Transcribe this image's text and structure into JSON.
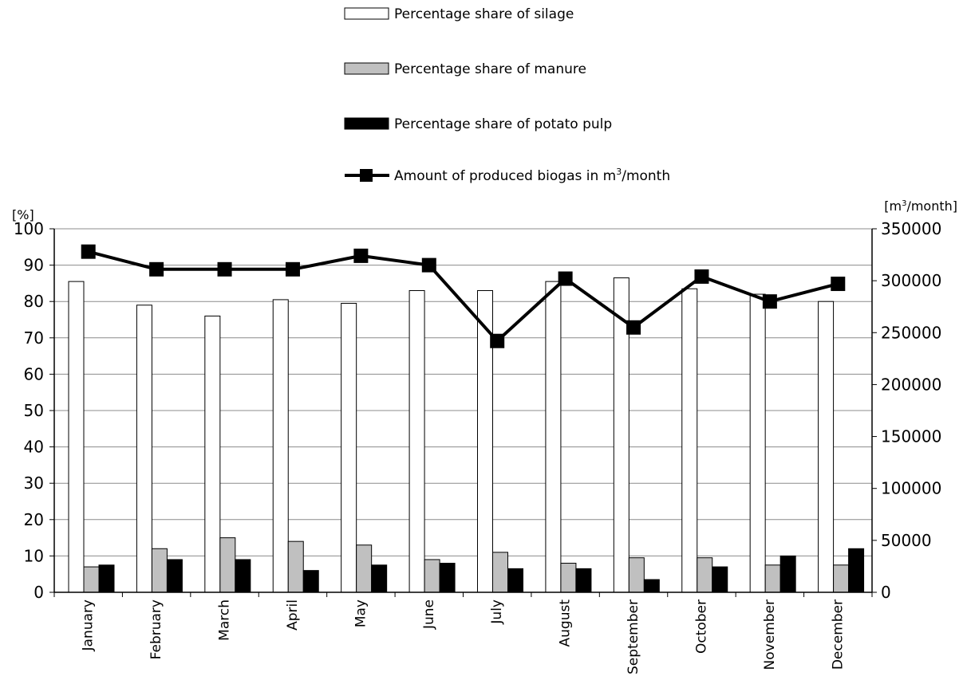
{
  "chart_data": {
    "type": "bar",
    "categories": [
      "January",
      "February",
      "March",
      "April",
      "May",
      "June",
      "July",
      "August",
      "September",
      "October",
      "November",
      "December"
    ],
    "series": [
      {
        "name": "Percentage share of silage",
        "kind": "bar",
        "axis": "left",
        "color": "#ffffff",
        "values": [
          85.5,
          79,
          76,
          80.5,
          79.5,
          83,
          83,
          85.5,
          86.5,
          83.5,
          82,
          80
        ]
      },
      {
        "name": "Percentage share of manure",
        "kind": "bar",
        "axis": "left",
        "color": "#c0c0c0",
        "values": [
          7,
          12,
          15,
          14,
          13,
          9,
          11,
          8,
          9.5,
          9.5,
          7.5,
          7.5
        ]
      },
      {
        "name": "Percentage share of potato pulp",
        "kind": "bar",
        "axis": "left",
        "color": "#000000",
        "values": [
          7.5,
          9,
          9,
          6,
          7.5,
          8,
          6.5,
          6.5,
          3.5,
          7,
          10,
          12
        ]
      },
      {
        "name": "Amount of produced biogas in m³/month",
        "name_prefix": "Amount of produced biogas in m",
        "name_sup": "3",
        "name_suffix": "/month",
        "kind": "line",
        "axis": "right",
        "color": "#000000",
        "values": [
          328000,
          311000,
          311000,
          311000,
          324000,
          315000,
          242000,
          302000,
          255000,
          304000,
          280000,
          297000
        ]
      }
    ],
    "y_left": {
      "label": "[%]",
      "ylim": [
        0,
        100
      ],
      "ticks": [
        "0",
        "10",
        "20",
        "30",
        "40",
        "50",
        "60",
        "70",
        "80",
        "90",
        "100"
      ]
    },
    "y_right": {
      "label_prefix": "[m",
      "label_sup": "3",
      "label_suffix": "/month]",
      "ylim": [
        0,
        350000
      ],
      "ticks": [
        "0",
        "50000",
        "100000",
        "150000",
        "200000",
        "250000",
        "300000",
        "350000"
      ]
    },
    "grid": true,
    "legend_position": "top"
  }
}
